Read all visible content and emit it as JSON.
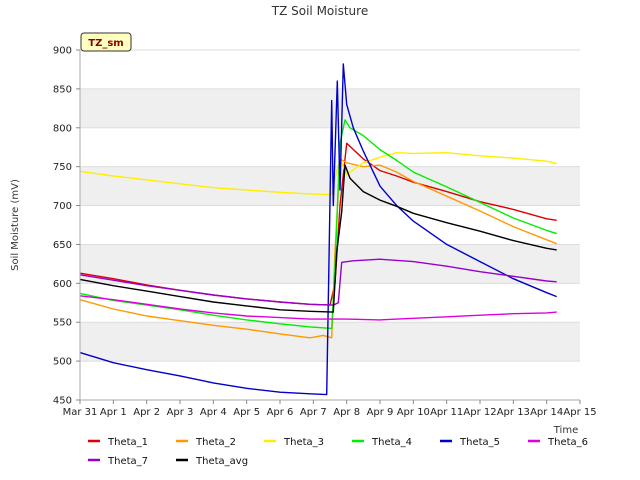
{
  "chart_data": {
    "type": "line",
    "title": "TZ Soil Moisture",
    "badge": "TZ_sm",
    "xlabel": "Time",
    "ylabel": "Soil Moisture (mV)",
    "ylim": [
      450,
      900
    ],
    "yticks": [
      450,
      500,
      550,
      600,
      650,
      700,
      750,
      800,
      850,
      900
    ],
    "xlim": [
      0,
      15
    ],
    "xticks": [
      0,
      1,
      2,
      3,
      4,
      5,
      6,
      7,
      8,
      9,
      10,
      11,
      12,
      13,
      14,
      15
    ],
    "xtick_labels": [
      "Mar 31",
      "Apr 1",
      "Apr 2",
      "Apr 3",
      "Apr 4",
      "Apr 5",
      "Apr 6",
      "Apr 7",
      "Apr 8",
      "Apr 9",
      "Apr 10",
      "Apr 11",
      "Apr 12",
      "Apr 13",
      "Apr 14",
      "Apr 15"
    ],
    "legend_position": "bottom",
    "series": [
      {
        "name": "Theta_1",
        "color": "#dd0000",
        "x": [
          0,
          1,
          2,
          3,
          4,
          5,
          6,
          6.9,
          7.5,
          7.65,
          7.8,
          8,
          8.5,
          9,
          9.5,
          10,
          11,
          12,
          13,
          14,
          14.3
        ],
        "y": [
          613,
          606,
          598,
          591,
          585,
          580,
          576,
          573,
          572,
          600,
          700,
          780,
          760,
          745,
          738,
          730,
          718,
          705,
          695,
          683,
          681
        ]
      },
      {
        "name": "Theta_2",
        "color": "#ff9900",
        "x": [
          0,
          1,
          2,
          3,
          4,
          5,
          6,
          6.9,
          7.3,
          7.55,
          7.65,
          7.8,
          8,
          8.5,
          9,
          9.5,
          10,
          11,
          12,
          13,
          14,
          14.3
        ],
        "y": [
          579,
          567,
          558,
          552,
          546,
          541,
          535,
          530,
          533,
          530,
          640,
          760,
          755,
          750,
          752,
          743,
          731,
          712,
          693,
          673,
          656,
          651
        ]
      },
      {
        "name": "Theta_3",
        "color": "#ffee00",
        "x": [
          0,
          1,
          2,
          3,
          4,
          5,
          6,
          6.9,
          7.55,
          7.65,
          7.8,
          8,
          8.5,
          9,
          9.5,
          10,
          11,
          12,
          13,
          14,
          14.3
        ],
        "y": [
          744,
          738,
          733,
          728,
          723,
          720,
          717,
          715,
          714,
          735,
          760,
          740,
          755,
          762,
          768,
          767,
          768,
          764,
          761,
          757,
          754
        ]
      },
      {
        "name": "Theta_4",
        "color": "#00ee00",
        "x": [
          0,
          1,
          2,
          3,
          4,
          5,
          6,
          6.9,
          7.55,
          7.65,
          7.8,
          7.95,
          8.1,
          8.5,
          9,
          9.5,
          10,
          11,
          12,
          13,
          14,
          14.3
        ],
        "y": [
          587,
          578,
          572,
          566,
          559,
          553,
          548,
          544,
          542,
          620,
          780,
          810,
          800,
          790,
          772,
          758,
          743,
          724,
          704,
          684,
          668,
          664
        ]
      },
      {
        "name": "Theta_5",
        "color": "#0000cc",
        "x": [
          0,
          1,
          2,
          3,
          4,
          5,
          6,
          6.9,
          7.4,
          7.55,
          7.6,
          7.72,
          7.8,
          7.9,
          8,
          8.2,
          8.5,
          9,
          9.5,
          10,
          11,
          12,
          13,
          14,
          14.3
        ],
        "y": [
          511,
          498,
          489,
          481,
          472,
          465,
          460,
          458,
          457,
          835,
          700,
          860,
          720,
          882,
          830,
          800,
          770,
          725,
          700,
          680,
          650,
          628,
          606,
          588,
          583
        ]
      },
      {
        "name": "Theta_6",
        "color": "#dd00dd",
        "x": [
          0,
          1,
          2,
          3,
          4,
          5,
          6,
          6.9,
          7.6,
          8,
          9,
          10,
          11,
          12,
          13,
          14,
          14.3
        ],
        "y": [
          584,
          579,
          573,
          567,
          562,
          558,
          556,
          554,
          554,
          554,
          553,
          555,
          557,
          559,
          561,
          562,
          563
        ]
      },
      {
        "name": "Theta_7",
        "color": "#9900cc",
        "x": [
          0,
          1,
          2,
          3,
          4,
          5,
          6,
          6.9,
          7.6,
          7.75,
          7.85,
          8.2,
          9,
          10,
          11,
          12,
          13,
          14,
          14.3
        ],
        "y": [
          611,
          604,
          597,
          591,
          585,
          580,
          576,
          573,
          572,
          575,
          627,
          629,
          631,
          628,
          622,
          615,
          609,
          603,
          602
        ]
      },
      {
        "name": "Theta_avg",
        "color": "#000000",
        "x": [
          0,
          1,
          2,
          3,
          4,
          5,
          6,
          6.9,
          7.6,
          7.7,
          7.85,
          7.95,
          8.1,
          8.5,
          9,
          9.5,
          10,
          11,
          12,
          13,
          14,
          14.3
        ],
        "y": [
          605,
          597,
          590,
          583,
          576,
          571,
          566,
          564,
          563,
          640,
          692,
          752,
          735,
          718,
          707,
          699,
          690,
          678,
          667,
          655,
          645,
          643
        ]
      }
    ]
  }
}
